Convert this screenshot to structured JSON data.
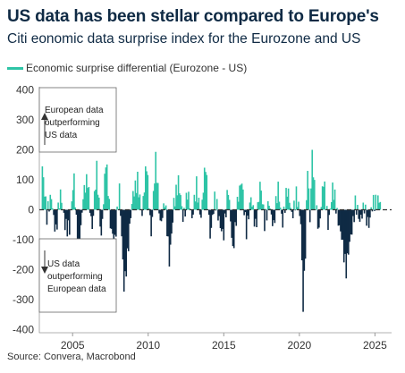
{
  "title": "US data has been stellar compared to Europe's",
  "subtitle": "Citi eonomic data surprise index for the Eurozone and US",
  "source": "Source: Convera, Macrobond",
  "colors": {
    "positive": "#2ec4a6",
    "negative": "#0f2a44",
    "title": "#0f2a44"
  },
  "chart_data": {
    "type": "area",
    "series": [
      {
        "name": "Economic surprise differential (Eurozone - US)"
      }
    ],
    "x_ticks": [
      "2005",
      "2010",
      "2015",
      "2020",
      "2025"
    ],
    "y_ticks": [
      "400",
      "300",
      "200",
      "100",
      "0",
      "-100",
      "-200",
      "-300",
      "-400"
    ],
    "xlim": [
      2002.8,
      2026.1
    ],
    "ylim": [
      -410,
      410
    ],
    "x": [
      2003.0,
      2003.3,
      2003.6,
      2003.9,
      2004.2,
      2004.5,
      2004.8,
      2005.1,
      2005.4,
      2005.7,
      2006.0,
      2006.3,
      2006.6,
      2006.9,
      2007.2,
      2007.5,
      2007.8,
      2008.1,
      2008.4,
      2008.7,
      2009.0,
      2009.3,
      2009.6,
      2009.9,
      2010.2,
      2010.5,
      2010.8,
      2011.1,
      2011.4,
      2011.7,
      2012.0,
      2012.3,
      2012.6,
      2012.9,
      2013.2,
      2013.5,
      2013.8,
      2014.1,
      2014.4,
      2014.7,
      2015.0,
      2015.3,
      2015.6,
      2015.9,
      2016.2,
      2016.5,
      2016.8,
      2017.1,
      2017.4,
      2017.7,
      2018.0,
      2018.3,
      2018.6,
      2018.9,
      2019.2,
      2019.5,
      2019.8,
      2020.1,
      2020.25,
      2020.4,
      2020.55,
      2020.7,
      2020.85,
      2021.0,
      2021.3,
      2021.6,
      2021.9,
      2022.2,
      2022.5,
      2022.8,
      2023.1,
      2023.4,
      2023.7,
      2024.0,
      2024.3,
      2024.6,
      2024.9,
      2025.2,
      2025.4
    ],
    "values": [
      150,
      -40,
      60,
      -60,
      30,
      -40,
      -70,
      110,
      -150,
      20,
      100,
      -60,
      130,
      -70,
      150,
      -60,
      -90,
      60,
      -240,
      -120,
      30,
      120,
      -20,
      160,
      -80,
      140,
      -30,
      40,
      -180,
      30,
      70,
      -20,
      80,
      -50,
      90,
      -40,
      150,
      -60,
      20,
      -40,
      -80,
      60,
      -110,
      10,
      80,
      -60,
      30,
      -40,
      90,
      -70,
      40,
      -60,
      80,
      -30,
      40,
      -10,
      60,
      -50,
      -310,
      -120,
      150,
      -60,
      160,
      70,
      -50,
      90,
      -40,
      60,
      -30,
      -60,
      -210,
      -90,
      20,
      -60,
      40,
      -50,
      10,
      40,
      20
    ],
    "annotations": [
      {
        "lines": [
          "European data",
          "outperforming",
          "US data"
        ]
      },
      {
        "lines": [
          "US data",
          "outperforming",
          "European data"
        ]
      }
    ]
  }
}
